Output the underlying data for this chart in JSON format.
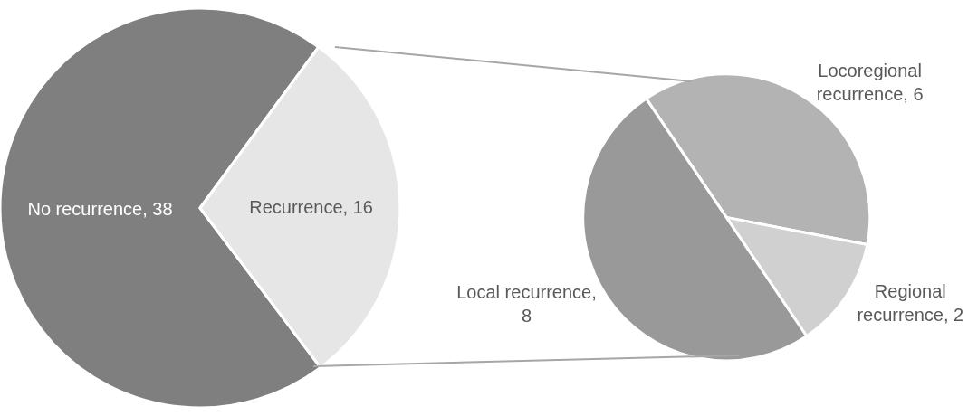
{
  "chart_data": [
    {
      "type": "pie",
      "categories": [
        "No recurrence, 38",
        "Recurrence, 16"
      ],
      "values": [
        38,
        16
      ],
      "colors": [
        "#7f7f7f",
        "#e6e6e6"
      ]
    },
    {
      "type": "pie",
      "categories": [
        "Locoregional recurrence, 6",
        "Regional recurrence, 2",
        "Local recurrence, 8"
      ],
      "values": [
        6,
        2,
        8
      ],
      "colors": [
        "#b3b3b3",
        "#d0d0d0",
        "#999999"
      ]
    }
  ]
}
